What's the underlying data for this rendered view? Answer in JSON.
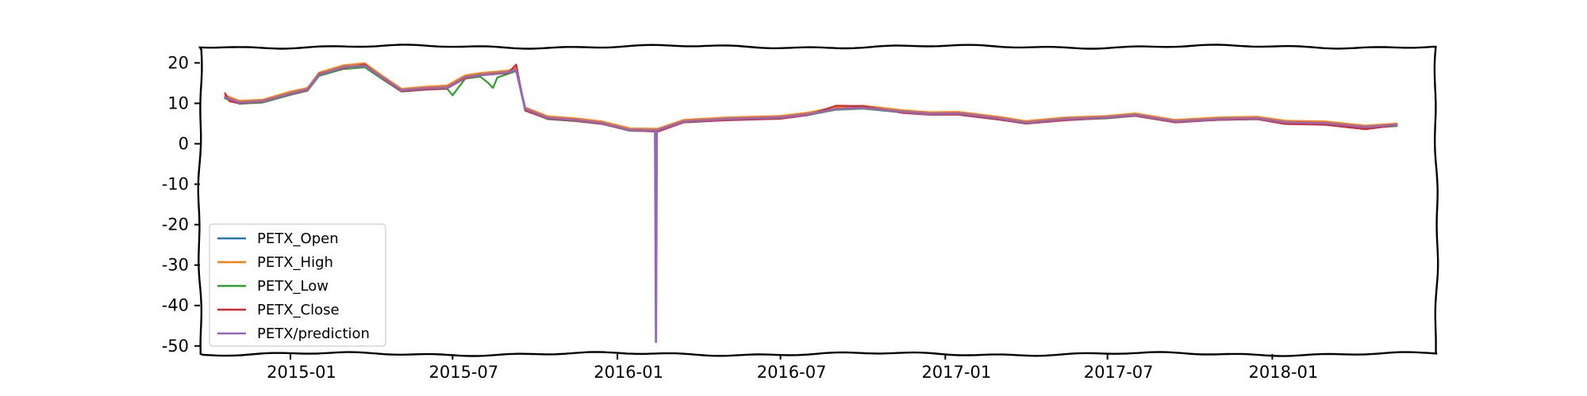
{
  "chart_data": {
    "type": "line",
    "title": "",
    "xlabel": "",
    "ylabel": "",
    "ylim": [
      -52,
      24
    ],
    "y_ticks": [
      20,
      10,
      0,
      -10,
      -20,
      -30,
      -40,
      -50
    ],
    "y_tick_labels": [
      "20",
      "10",
      "0",
      "-10",
      "-20",
      "-30",
      "-40",
      "-50"
    ],
    "xlim": [
      "2014-09-22",
      "2018-07-03"
    ],
    "x_ticks": [
      "2015-01-01",
      "2015-07-01",
      "2016-01-01",
      "2016-07-01",
      "2017-01-01",
      "2017-07-01",
      "2018-01-01"
    ],
    "x_tick_labels": [
      "2015-01",
      "2015-07",
      "2016-01",
      "2016-07",
      "2017-01",
      "2017-07",
      "2018-01"
    ],
    "grid": false,
    "legend_position": "lower-left",
    "series_colors": [
      "#1f77b4",
      "#ff7f0e",
      "#2ca02c",
      "#d62728",
      "#9467bd"
    ],
    "series": [
      {
        "name": "PETX_Open",
        "points": [
          [
            "2014-10-20",
            11.6
          ],
          [
            "2014-11-05",
            10.3
          ],
          [
            "2014-12-01",
            10.6
          ],
          [
            "2015-01-01",
            12.5
          ],
          [
            "2015-01-20",
            13.5
          ],
          [
            "2015-02-02",
            17.2
          ],
          [
            "2015-03-01",
            19.0
          ],
          [
            "2015-03-25",
            19.4
          ],
          [
            "2015-04-15",
            16.3
          ],
          [
            "2015-05-05",
            13.3
          ],
          [
            "2015-06-01",
            13.8
          ],
          [
            "2015-06-25",
            14.0
          ],
          [
            "2015-07-15",
            16.5
          ],
          [
            "2015-08-01",
            17.1
          ],
          [
            "2015-09-01",
            17.8
          ],
          [
            "2015-09-10",
            18.4
          ],
          [
            "2015-09-20",
            8.7
          ],
          [
            "2015-10-15",
            6.5
          ],
          [
            "2015-11-15",
            6.0
          ],
          [
            "2015-12-15",
            5.2
          ],
          [
            "2016-01-15",
            3.5
          ],
          [
            "2016-02-15",
            3.4
          ],
          [
            "2016-03-15",
            5.6
          ],
          [
            "2016-05-01",
            6.2
          ],
          [
            "2016-07-01",
            6.6
          ],
          [
            "2016-08-01",
            7.4
          ],
          [
            "2016-09-01",
            8.7
          ],
          [
            "2016-10-01",
            9.0
          ],
          [
            "2016-11-15",
            8.0
          ],
          [
            "2016-12-15",
            7.5
          ],
          [
            "2017-01-15",
            7.6
          ],
          [
            "2017-03-01",
            6.4
          ],
          [
            "2017-04-01",
            5.3
          ],
          [
            "2017-05-15",
            6.2
          ],
          [
            "2017-07-01",
            6.6
          ],
          [
            "2017-08-01",
            7.2
          ],
          [
            "2017-09-15",
            5.6
          ],
          [
            "2017-11-01",
            6.2
          ],
          [
            "2017-12-15",
            6.4
          ],
          [
            "2018-01-15",
            5.4
          ],
          [
            "2018-03-01",
            5.2
          ],
          [
            "2018-04-15",
            4.2
          ],
          [
            "2018-05-20",
            4.7
          ]
        ]
      },
      {
        "name": "PETX_High",
        "points": [
          [
            "2014-10-20",
            12.0
          ],
          [
            "2014-11-05",
            10.6
          ],
          [
            "2014-12-01",
            10.9
          ],
          [
            "2015-01-01",
            12.9
          ],
          [
            "2015-01-20",
            13.8
          ],
          [
            "2015-02-02",
            17.6
          ],
          [
            "2015-03-01",
            19.4
          ],
          [
            "2015-03-25",
            19.9
          ],
          [
            "2015-04-15",
            16.6
          ],
          [
            "2015-05-05",
            13.6
          ],
          [
            "2015-06-01",
            14.1
          ],
          [
            "2015-06-25",
            14.4
          ],
          [
            "2015-07-15",
            16.9
          ],
          [
            "2015-08-01",
            17.5
          ],
          [
            "2015-09-01",
            18.1
          ],
          [
            "2015-09-10",
            18.8
          ],
          [
            "2015-09-20",
            9.0
          ],
          [
            "2015-10-15",
            6.8
          ],
          [
            "2015-11-15",
            6.3
          ],
          [
            "2015-12-15",
            5.5
          ],
          [
            "2016-01-15",
            3.8
          ],
          [
            "2016-02-15",
            3.7
          ],
          [
            "2016-03-15",
            5.9
          ],
          [
            "2016-05-01",
            6.5
          ],
          [
            "2016-07-01",
            6.9
          ],
          [
            "2016-08-01",
            7.7
          ],
          [
            "2016-09-01",
            9.1
          ],
          [
            "2016-10-01",
            9.4
          ],
          [
            "2016-11-15",
            8.3
          ],
          [
            "2016-12-15",
            7.8
          ],
          [
            "2017-01-15",
            7.9
          ],
          [
            "2017-03-01",
            6.7
          ],
          [
            "2017-04-01",
            5.6
          ],
          [
            "2017-05-15",
            6.5
          ],
          [
            "2017-07-01",
            6.9
          ],
          [
            "2017-08-01",
            7.5
          ],
          [
            "2017-09-15",
            5.9
          ],
          [
            "2017-11-01",
            6.5
          ],
          [
            "2017-12-15",
            6.7
          ],
          [
            "2018-01-15",
            5.7
          ],
          [
            "2018-03-01",
            5.5
          ],
          [
            "2018-04-15",
            4.5
          ],
          [
            "2018-05-20",
            5.0
          ]
        ]
      },
      {
        "name": "PETX_Low",
        "points": [
          [
            "2014-10-20",
            11.2
          ],
          [
            "2014-11-05",
            9.9
          ],
          [
            "2014-12-01",
            10.2
          ],
          [
            "2015-01-01",
            12.1
          ],
          [
            "2015-01-20",
            13.1
          ],
          [
            "2015-02-02",
            16.8
          ],
          [
            "2015-03-01",
            18.5
          ],
          [
            "2015-03-25",
            18.9
          ],
          [
            "2015-04-15",
            15.8
          ],
          [
            "2015-05-05",
            12.9
          ],
          [
            "2015-06-01",
            13.4
          ],
          [
            "2015-06-25",
            13.6
          ],
          [
            "2015-07-01",
            12.0
          ],
          [
            "2015-07-15",
            16.1
          ],
          [
            "2015-08-01",
            16.6
          ],
          [
            "2015-08-10",
            15.0
          ],
          [
            "2015-08-15",
            13.8
          ],
          [
            "2015-08-20",
            16.4
          ],
          [
            "2015-09-01",
            17.3
          ],
          [
            "2015-09-10",
            18.0
          ],
          [
            "2015-09-20",
            8.3
          ],
          [
            "2015-10-15",
            6.1
          ],
          [
            "2015-11-15",
            5.6
          ],
          [
            "2015-12-15",
            4.9
          ],
          [
            "2016-01-15",
            3.2
          ],
          [
            "2016-02-15",
            3.1
          ],
          [
            "2016-03-15",
            5.3
          ],
          [
            "2016-05-01",
            5.9
          ],
          [
            "2016-07-01",
            6.3
          ],
          [
            "2016-08-01",
            7.1
          ],
          [
            "2016-09-01",
            8.4
          ],
          [
            "2016-10-01",
            8.7
          ],
          [
            "2016-11-15",
            7.7
          ],
          [
            "2016-12-15",
            7.2
          ],
          [
            "2017-01-15",
            7.3
          ],
          [
            "2017-03-01",
            6.1
          ],
          [
            "2017-04-01",
            5.0
          ],
          [
            "2017-05-15",
            5.9
          ],
          [
            "2017-07-01",
            6.3
          ],
          [
            "2017-08-01",
            6.9
          ],
          [
            "2017-09-15",
            5.3
          ],
          [
            "2017-11-01",
            5.9
          ],
          [
            "2017-12-15",
            6.1
          ],
          [
            "2018-01-15",
            5.1
          ],
          [
            "2018-03-01",
            4.9
          ],
          [
            "2018-04-15",
            3.9
          ],
          [
            "2018-05-20",
            4.4
          ]
        ]
      },
      {
        "name": "PETX_Close",
        "points": [
          [
            "2014-10-20",
            12.5
          ],
          [
            "2014-10-25",
            10.5
          ],
          [
            "2014-11-05",
            10.0
          ],
          [
            "2014-12-01",
            10.4
          ],
          [
            "2015-01-01",
            12.3
          ],
          [
            "2015-01-20",
            13.2
          ],
          [
            "2015-02-02",
            17.3
          ],
          [
            "2015-03-01",
            18.7
          ],
          [
            "2015-03-25",
            19.6
          ],
          [
            "2015-04-15",
            16.0
          ],
          [
            "2015-05-05",
            13.0
          ],
          [
            "2015-06-01",
            13.4
          ],
          [
            "2015-06-25",
            13.7
          ],
          [
            "2015-07-15",
            16.2
          ],
          [
            "2015-08-01",
            16.9
          ],
          [
            "2015-09-01",
            17.5
          ],
          [
            "2015-09-10",
            19.6
          ],
          [
            "2015-09-20",
            8.2
          ],
          [
            "2015-10-15",
            6.2
          ],
          [
            "2015-11-15",
            5.7
          ],
          [
            "2015-12-15",
            4.9
          ],
          [
            "2016-01-15",
            3.3
          ],
          [
            "2016-02-15",
            3.0
          ],
          [
            "2016-03-15",
            5.3
          ],
          [
            "2016-05-01",
            5.8
          ],
          [
            "2016-07-01",
            6.2
          ],
          [
            "2016-08-01",
            7.1
          ],
          [
            "2016-09-01",
            9.4
          ],
          [
            "2016-10-01",
            9.3
          ],
          [
            "2016-11-15",
            7.6
          ],
          [
            "2016-12-15",
            7.2
          ],
          [
            "2017-01-15",
            7.2
          ],
          [
            "2017-03-01",
            6.0
          ],
          [
            "2017-04-01",
            5.0
          ],
          [
            "2017-05-15",
            5.8
          ],
          [
            "2017-07-01",
            6.4
          ],
          [
            "2017-08-01",
            6.9
          ],
          [
            "2017-09-15",
            5.3
          ],
          [
            "2017-11-01",
            5.9
          ],
          [
            "2017-12-15",
            6.1
          ],
          [
            "2018-01-15",
            4.9
          ],
          [
            "2018-03-01",
            4.7
          ],
          [
            "2018-04-15",
            3.6
          ],
          [
            "2018-05-20",
            4.6
          ]
        ]
      },
      {
        "name": "PETX/prediction",
        "points": [
          [
            "2014-10-20",
            11.5
          ],
          [
            "2014-11-05",
            10.2
          ],
          [
            "2014-12-01",
            10.5
          ],
          [
            "2015-01-01",
            12.4
          ],
          [
            "2015-01-20",
            13.4
          ],
          [
            "2015-02-02",
            17.1
          ],
          [
            "2015-03-01",
            18.9
          ],
          [
            "2015-03-25",
            19.3
          ],
          [
            "2015-04-15",
            16.2
          ],
          [
            "2015-05-05",
            13.2
          ],
          [
            "2015-06-01",
            13.7
          ],
          [
            "2015-06-25",
            13.9
          ],
          [
            "2015-07-15",
            16.4
          ],
          [
            "2015-08-01",
            17.0
          ],
          [
            "2015-09-01",
            17.7
          ],
          [
            "2015-09-10",
            18.3
          ],
          [
            "2015-09-20",
            8.6
          ],
          [
            "2015-10-15",
            6.4
          ],
          [
            "2015-11-15",
            5.9
          ],
          [
            "2015-12-15",
            5.1
          ],
          [
            "2016-01-15",
            3.4
          ],
          [
            "2016-02-12",
            3.3
          ],
          [
            "2016-02-13",
            -49.0
          ],
          [
            "2016-02-14",
            3.3
          ],
          [
            "2016-03-15",
            5.5
          ],
          [
            "2016-05-01",
            6.1
          ],
          [
            "2016-07-01",
            6.5
          ],
          [
            "2016-08-01",
            7.3
          ],
          [
            "2016-09-01",
            8.6
          ],
          [
            "2016-10-01",
            8.9
          ],
          [
            "2016-11-15",
            7.9
          ],
          [
            "2016-12-15",
            7.4
          ],
          [
            "2017-01-15",
            7.5
          ],
          [
            "2017-03-01",
            6.3
          ],
          [
            "2017-04-01",
            5.2
          ],
          [
            "2017-05-15",
            6.1
          ],
          [
            "2017-07-01",
            6.5
          ],
          [
            "2017-08-01",
            7.1
          ],
          [
            "2017-09-15",
            5.5
          ],
          [
            "2017-11-01",
            6.1
          ],
          [
            "2017-12-15",
            6.3
          ],
          [
            "2018-01-15",
            5.3
          ],
          [
            "2018-03-01",
            5.1
          ],
          [
            "2018-04-15",
            4.1
          ],
          [
            "2018-05-20",
            4.7
          ]
        ]
      }
    ]
  }
}
